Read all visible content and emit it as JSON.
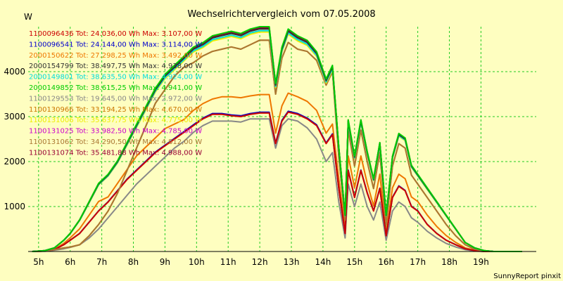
{
  "chart_data": {
    "type": "line",
    "title": "Wechselrichtervergleich vom 07.05.2008",
    "ylabel": "W",
    "xlabel": "",
    "footer": "SunnyReport pinxit",
    "ylim": [
      0,
      5000
    ],
    "xlim": [
      4.67,
      20.75
    ],
    "yticks": [
      1000,
      2000,
      3000,
      4000
    ],
    "xticks": [
      {
        "value": 5,
        "label": "5h"
      },
      {
        "value": 6,
        "label": "6h"
      },
      {
        "value": 7,
        "label": "7h"
      },
      {
        "value": 8,
        "label": "8h"
      },
      {
        "value": 9,
        "label": "9h"
      },
      {
        "value": 10,
        "label": "10h"
      },
      {
        "value": 11,
        "label": "11h"
      },
      {
        "value": 12,
        "label": "12h"
      },
      {
        "value": 13,
        "label": "13h"
      },
      {
        "value": 14,
        "label": "14h"
      },
      {
        "value": 15,
        "label": "15h"
      },
      {
        "value": 16,
        "label": "16h"
      },
      {
        "value": 17,
        "label": "17h"
      },
      {
        "value": 18,
        "label": "18h"
      },
      {
        "value": 19,
        "label": "19h"
      }
    ],
    "grid": true,
    "grid_color": "#22cc22",
    "background_color": "#fefec0",
    "legend_placement": "top-left",
    "series": [
      {
        "name": "1100096436 Tot: 24.036,00 Wh Max: 3.107,00 W",
        "color": "#cc0000",
        "tier": "low"
      },
      {
        "name": "1100096541 Tot: 24.144,00 Wh Max: 3.114,00 W",
        "color": "#0000cc",
        "tier": "low"
      },
      {
        "name": "2000150622 Tot: 27.298,25 Wh Max: 3.492,00 W",
        "color": "#ee7700",
        "tier": "mid"
      },
      {
        "name": "2000154799 Tot: 38.497,75 Wh Max: 4.938,00 W",
        "color": "#333333",
        "tier": "high"
      },
      {
        "name": "2000149801 Tot: 38.635,50 Wh Max: 4.924,00 W",
        "color": "#00dddd",
        "tier": "high"
      },
      {
        "name": "2000149852 Tot: 38.615,25 Wh Max: 4.941,00 W",
        "color": "#00cc00",
        "tier": "high"
      },
      {
        "name": "1100129553 Tot: 19.645,00 Wh Max: 2.972,00 W",
        "color": "#888888",
        "tier": "low2"
      },
      {
        "name": "1100130966 Tot: 33.194,25 Wh Max: 4.670,00 W",
        "color": "#cc7700",
        "tier": "high2"
      },
      {
        "name": "1100131006 Tot: 35.637,75 Wh Max: 4.775,00 W",
        "color": "#eeee00",
        "tier": "high"
      },
      {
        "name": "1100131025 Tot: 33.982,50 Wh Max: 4.785,00 W",
        "color": "#cc00cc",
        "tier": "high"
      },
      {
        "name": "1100131062 Tot: 34.290,50 Wh Max: 4.812,00 W",
        "color": "#aa7733",
        "tier": "high2"
      },
      {
        "name": "1100131074 Tot: 35.481,88 Wh Max: 4.988,00 W",
        "color": "#990033",
        "tier": "high"
      }
    ],
    "curves": {
      "high": {
        "x": [
          4.8,
          5.2,
          5.5,
          5.8,
          6.0,
          6.3,
          6.6,
          6.9,
          7.2,
          7.5,
          7.8,
          8.1,
          8.4,
          8.7,
          9.0,
          9.3,
          9.6,
          9.9,
          10.2,
          10.5,
          10.8,
          11.1,
          11.4,
          11.7,
          12.0,
          12.3,
          12.5,
          12.7,
          12.9,
          13.2,
          13.5,
          13.8,
          14.1,
          14.3,
          14.5,
          14.7,
          14.8,
          15.0,
          15.2,
          15.4,
          15.6,
          15.8,
          16.0,
          16.2,
          16.4,
          16.6,
          16.8,
          17.0,
          17.3,
          17.6,
          17.9,
          18.2,
          18.5,
          18.8,
          19.1,
          19.4,
          19.7,
          20.0,
          20.3
        ],
        "y": [
          0,
          20,
          80,
          250,
          400,
          700,
          1100,
          1500,
          1700,
          2000,
          2400,
          2800,
          3200,
          3600,
          3900,
          4100,
          4300,
          4500,
          4600,
          4750,
          4800,
          4850,
          4800,
          4900,
          4950,
          4950,
          3700,
          4500,
          4900,
          4750,
          4650,
          4400,
          3800,
          4100,
          2300,
          800,
          2900,
          2100,
          2900,
          2200,
          1600,
          2400,
          800,
          2100,
          2600,
          2500,
          1900,
          1700,
          1400,
          1100,
          800,
          500,
          200,
          80,
          20,
          0,
          0,
          0,
          0
        ]
      },
      "high2": {
        "x": [
          4.8,
          5.2,
          5.5,
          5.8,
          6.0,
          6.3,
          6.6,
          6.9,
          7.2,
          7.5,
          7.8,
          8.1,
          8.4,
          8.7,
          9.0,
          9.3,
          9.6,
          9.9,
          10.2,
          10.5,
          10.8,
          11.1,
          11.4,
          11.7,
          12.0,
          12.3,
          12.5,
          12.7,
          12.9,
          13.2,
          13.5,
          13.8,
          14.1,
          14.3,
          14.5,
          14.7,
          14.8,
          15.0,
          15.2,
          15.4,
          15.6,
          15.8,
          16.0,
          16.2,
          16.4,
          16.6,
          16.8,
          17.0,
          17.3,
          17.6,
          17.9,
          18.2,
          18.5,
          18.8,
          19.1,
          19.4,
          19.7,
          20.0,
          20.3
        ],
        "y": [
          0,
          10,
          40,
          80,
          100,
          150,
          350,
          600,
          900,
          1300,
          1800,
          2300,
          2800,
          3300,
          3600,
          3900,
          4100,
          4200,
          4350,
          4450,
          4500,
          4550,
          4500,
          4600,
          4700,
          4700,
          3500,
          4300,
          4650,
          4500,
          4450,
          4250,
          3700,
          4000,
          2100,
          700,
          2700,
          1900,
          2700,
          2000,
          1400,
          2200,
          600,
          1900,
          2400,
          2300,
          1700,
          1500,
          1200,
          900,
          600,
          350,
          150,
          50,
          10,
          0,
          0,
          0,
          0
        ]
      },
      "mid": {
        "x": [
          4.8,
          5.2,
          5.5,
          5.8,
          6.0,
          6.3,
          6.6,
          6.9,
          7.2,
          7.5,
          7.8,
          8.1,
          8.4,
          8.7,
          9.0,
          9.3,
          9.6,
          9.9,
          10.2,
          10.5,
          10.8,
          11.1,
          11.4,
          11.7,
          12.0,
          12.3,
          12.5,
          12.7,
          12.9,
          13.2,
          13.5,
          13.8,
          14.1,
          14.3,
          14.5,
          14.7,
          14.8,
          15.0,
          15.2,
          15.4,
          15.6,
          15.8,
          16.0,
          16.2,
          16.4,
          16.6,
          16.8,
          17.0,
          17.3,
          17.6,
          17.9,
          18.2,
          18.5,
          18.8,
          19.1,
          19.4,
          19.7,
          20.0,
          20.3
        ],
        "y": [
          0,
          10,
          50,
          180,
          300,
          500,
          800,
          1100,
          1200,
          1500,
          1800,
          2100,
          2300,
          2500,
          2700,
          2800,
          2900,
          3100,
          3250,
          3350,
          3400,
          3400,
          3380,
          3420,
          3450,
          3450,
          2600,
          3200,
          3480,
          3400,
          3300,
          3100,
          2600,
          2800,
          1600,
          500,
          2100,
          1400,
          2100,
          1500,
          1000,
          1700,
          400,
          1400,
          1700,
          1600,
          1200,
          1100,
          800,
          550,
          350,
          200,
          80,
          30,
          0,
          0,
          0,
          0,
          0
        ]
      },
      "low": {
        "x": [
          4.8,
          5.2,
          5.5,
          5.8,
          6.0,
          6.3,
          6.6,
          6.9,
          7.2,
          7.5,
          7.8,
          8.1,
          8.4,
          8.7,
          9.0,
          9.3,
          9.6,
          9.9,
          10.2,
          10.5,
          10.8,
          11.1,
          11.4,
          11.7,
          12.0,
          12.3,
          12.5,
          12.7,
          12.9,
          13.2,
          13.5,
          13.8,
          14.1,
          14.3,
          14.5,
          14.7,
          14.8,
          15.0,
          15.2,
          15.4,
          15.6,
          15.8,
          16.0,
          16.2,
          16.4,
          16.6,
          16.8,
          17.0,
          17.3,
          17.6,
          17.9,
          18.2,
          18.5,
          18.8,
          19.1,
          19.4,
          19.7,
          20.0,
          20.3
        ],
        "y": [
          0,
          10,
          40,
          150,
          250,
          400,
          650,
          900,
          1100,
          1350,
          1600,
          1800,
          2000,
          2200,
          2350,
          2500,
          2650,
          2800,
          2950,
          3050,
          3050,
          3020,
          3000,
          3050,
          3080,
          3080,
          2400,
          2900,
          3100,
          3050,
          2950,
          2800,
          2400,
          2600,
          1400,
          400,
          1800,
          1200,
          1800,
          1300,
          900,
          1400,
          350,
          1200,
          1450,
          1350,
          1000,
          900,
          600,
          400,
          250,
          150,
          60,
          20,
          0,
          0,
          0,
          0,
          0
        ]
      },
      "low2": {
        "x": [
          4.8,
          5.2,
          5.5,
          5.8,
          6.0,
          6.3,
          6.6,
          6.9,
          7.2,
          7.5,
          7.8,
          8.1,
          8.4,
          8.7,
          9.0,
          9.3,
          9.6,
          9.9,
          10.2,
          10.5,
          10.8,
          11.1,
          11.4,
          11.7,
          12.0,
          12.3,
          12.5,
          12.7,
          12.9,
          13.2,
          13.5,
          13.8,
          14.1,
          14.3,
          14.5,
          14.7,
          14.8,
          15.0,
          15.2,
          15.4,
          15.6,
          15.8,
          16.0,
          16.2,
          16.4,
          16.6,
          16.8,
          17.0,
          17.3,
          17.6,
          17.9,
          18.2,
          18.5,
          18.8,
          19.1,
          19.4,
          19.7,
          20.0,
          20.3
        ],
        "y": [
          0,
          5,
          30,
          60,
          90,
          150,
          300,
          500,
          750,
          1000,
          1250,
          1500,
          1700,
          1900,
          2100,
          2300,
          2450,
          2650,
          2800,
          2900,
          2900,
          2900,
          2880,
          2950,
          2950,
          2950,
          2300,
          2800,
          2950,
          2900,
          2750,
          2500,
          2000,
          2200,
          1100,
          300,
          1500,
          1000,
          1500,
          1000,
          700,
          1100,
          250,
          900,
          1100,
          1000,
          750,
          650,
          450,
          300,
          180,
          100,
          40,
          10,
          0,
          0,
          0,
          0,
          0
        ]
      }
    }
  }
}
